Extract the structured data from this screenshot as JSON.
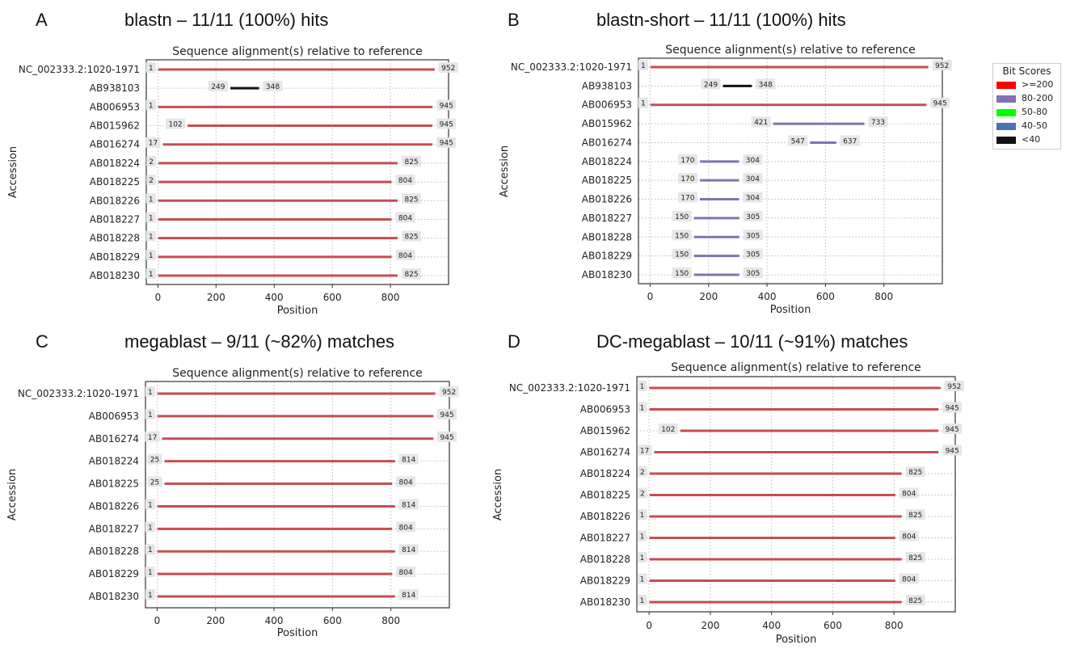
{
  "panels": [
    {
      "letter": "A",
      "heading": "blastn – 11/11 (100%) hits"
    },
    {
      "letter": "B",
      "heading": "blastn-short – 11/11 (100%) hits"
    },
    {
      "letter": "C",
      "heading": "megablast – 9/11 (~82%) matches"
    },
    {
      "letter": "D",
      "heading": "DC-megablast – 10/11 (~91%) matches"
    }
  ],
  "legend": {
    "title": "Bit Scores",
    "items": [
      {
        "label": ">=200",
        "color": "#ff0000"
      },
      {
        "label": "80-200",
        "color": "#8172b2"
      },
      {
        "label": "50-80",
        "color": "#00ff00"
      },
      {
        "label": "40-50",
        "color": "#4c72b0"
      },
      {
        "label": "<40",
        "color": "#111111"
      }
    ]
  },
  "chart_data": [
    {
      "type": "bar",
      "title": "Sequence alignment(s) relative to reference",
      "xlabel": "Position",
      "ylabel": "Accession",
      "xticks": [
        0,
        200,
        400,
        600,
        800
      ],
      "xlim": [
        -40,
        1000
      ],
      "grid": true,
      "rows": [
        {
          "accession": "NC_002333.2:1020-1971",
          "start": 1,
          "end": 952,
          "score": ">=200"
        },
        {
          "accession": "AB938103",
          "start": 249,
          "end": 348,
          "score": "<40"
        },
        {
          "accession": "AB006953",
          "start": 1,
          "end": 945,
          "score": ">=200"
        },
        {
          "accession": "AB015962",
          "start": 102,
          "end": 945,
          "score": ">=200"
        },
        {
          "accession": "AB016274",
          "start": 17,
          "end": 945,
          "score": ">=200"
        },
        {
          "accession": "AB018224",
          "start": 2,
          "end": 825,
          "score": ">=200"
        },
        {
          "accession": "AB018225",
          "start": 2,
          "end": 804,
          "score": ">=200"
        },
        {
          "accession": "AB018226",
          "start": 1,
          "end": 825,
          "score": ">=200"
        },
        {
          "accession": "AB018227",
          "start": 1,
          "end": 804,
          "score": ">=200"
        },
        {
          "accession": "AB018228",
          "start": 1,
          "end": 825,
          "score": ">=200"
        },
        {
          "accession": "AB018229",
          "start": 1,
          "end": 804,
          "score": ">=200"
        },
        {
          "accession": "AB018230",
          "start": 1,
          "end": 825,
          "score": ">=200"
        }
      ]
    },
    {
      "type": "bar",
      "title": "Sequence alignment(s) relative to reference",
      "xlabel": "Position",
      "ylabel": "Accession",
      "xticks": [
        0,
        200,
        400,
        600,
        800
      ],
      "xlim": [
        -40,
        1000
      ],
      "grid": true,
      "rows": [
        {
          "accession": "NC_002333.2:1020-1971",
          "start": 1,
          "end": 952,
          "score": ">=200"
        },
        {
          "accession": "AB938103",
          "start": 249,
          "end": 348,
          "score": "<40"
        },
        {
          "accession": "AB006953",
          "start": 1,
          "end": 945,
          "score": ">=200"
        },
        {
          "accession": "AB015962",
          "start": 421,
          "end": 733,
          "score": "80-200"
        },
        {
          "accession": "AB016274",
          "start": 547,
          "end": 637,
          "score": "80-200"
        },
        {
          "accession": "AB018224",
          "start": 170,
          "end": 304,
          "score": "80-200"
        },
        {
          "accession": "AB018225",
          "start": 170,
          "end": 304,
          "score": "80-200"
        },
        {
          "accession": "AB018226",
          "start": 170,
          "end": 304,
          "score": "80-200"
        },
        {
          "accession": "AB018227",
          "start": 150,
          "end": 305,
          "score": "80-200"
        },
        {
          "accession": "AB018228",
          "start": 150,
          "end": 305,
          "score": "80-200"
        },
        {
          "accession": "AB018229",
          "start": 150,
          "end": 305,
          "score": "80-200"
        },
        {
          "accession": "AB018230",
          "start": 150,
          "end": 305,
          "score": "80-200"
        }
      ]
    },
    {
      "type": "bar",
      "title": "Sequence alignment(s) relative to reference",
      "xlabel": "Position",
      "ylabel": "Accession",
      "xticks": [
        0,
        200,
        400,
        600,
        800
      ],
      "xlim": [
        -40,
        1000
      ],
      "grid": true,
      "rows": [
        {
          "accession": "NC_002333.2:1020-1971",
          "start": 1,
          "end": 952,
          "score": ">=200"
        },
        {
          "accession": "AB006953",
          "start": 1,
          "end": 945,
          "score": ">=200"
        },
        {
          "accession": "AB016274",
          "start": 17,
          "end": 945,
          "score": ">=200"
        },
        {
          "accession": "AB018224",
          "start": 25,
          "end": 814,
          "score": ">=200"
        },
        {
          "accession": "AB018225",
          "start": 25,
          "end": 804,
          "score": ">=200"
        },
        {
          "accession": "AB018226",
          "start": 1,
          "end": 814,
          "score": ">=200"
        },
        {
          "accession": "AB018227",
          "start": 1,
          "end": 804,
          "score": ">=200"
        },
        {
          "accession": "AB018228",
          "start": 1,
          "end": 814,
          "score": ">=200"
        },
        {
          "accession": "AB018229",
          "start": 1,
          "end": 804,
          "score": ">=200"
        },
        {
          "accession": "AB018230",
          "start": 1,
          "end": 814,
          "score": ">=200"
        }
      ]
    },
    {
      "type": "bar",
      "title": "Sequence alignment(s) relative to reference",
      "xlabel": "Position",
      "ylabel": "Accession",
      "xticks": [
        0,
        200,
        400,
        600,
        800
      ],
      "xlim": [
        -40,
        1000
      ],
      "grid": true,
      "rows": [
        {
          "accession": "NC_002333.2:1020-1971",
          "start": 1,
          "end": 952,
          "score": ">=200"
        },
        {
          "accession": "AB006953",
          "start": 1,
          "end": 945,
          "score": ">=200"
        },
        {
          "accession": "AB015962",
          "start": 102,
          "end": 945,
          "score": ">=200"
        },
        {
          "accession": "AB016274",
          "start": 17,
          "end": 945,
          "score": ">=200"
        },
        {
          "accession": "AB018224",
          "start": 2,
          "end": 825,
          "score": ">=200"
        },
        {
          "accession": "AB018225",
          "start": 2,
          "end": 804,
          "score": ">=200"
        },
        {
          "accession": "AB018226",
          "start": 1,
          "end": 825,
          "score": ">=200"
        },
        {
          "accession": "AB018227",
          "start": 1,
          "end": 804,
          "score": ">=200"
        },
        {
          "accession": "AB018228",
          "start": 1,
          "end": 825,
          "score": ">=200"
        },
        {
          "accession": "AB018229",
          "start": 1,
          "end": 804,
          "score": ">=200"
        },
        {
          "accession": "AB018230",
          "start": 1,
          "end": 825,
          "score": ">=200"
        }
      ]
    }
  ]
}
